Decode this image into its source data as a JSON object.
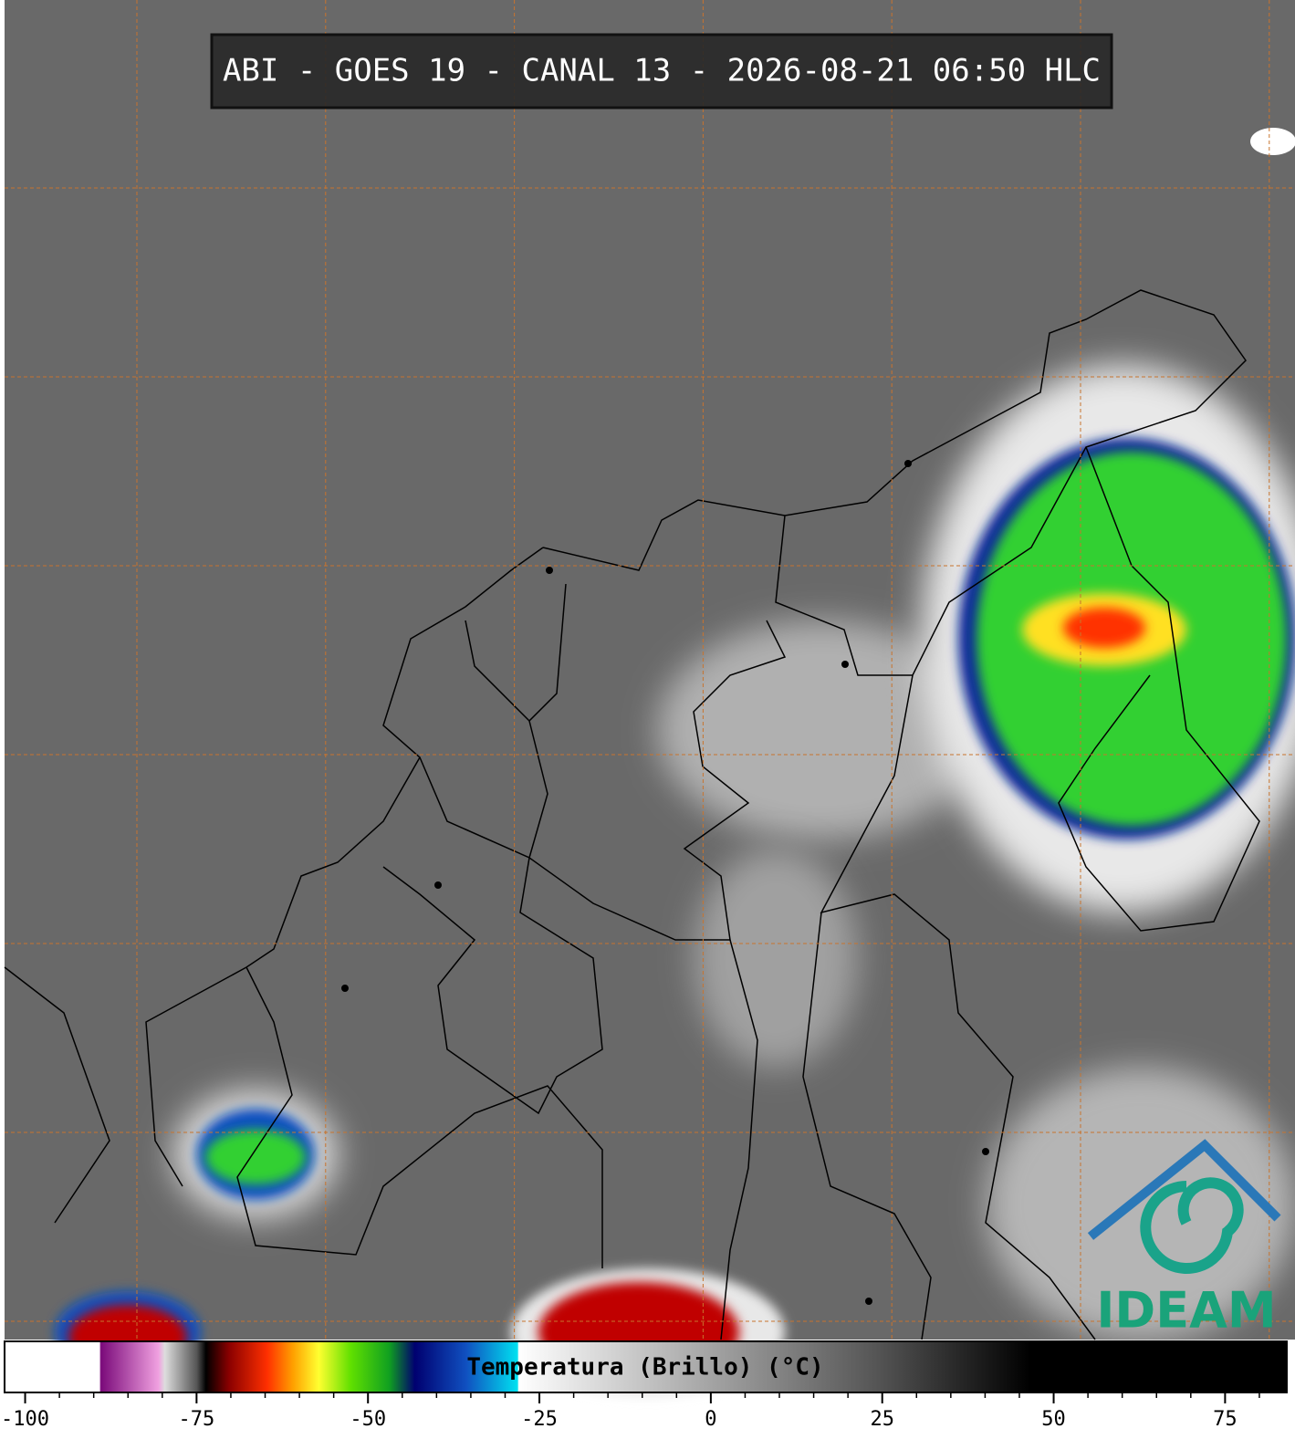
{
  "title": "ABI - GOES 19 - CANAL 13 - 2026-08-21 06:50 HLC",
  "colorbar": {
    "label": "Temperatura (Brillo) (°C)",
    "lim": [
      -103,
      84
    ],
    "ticks": [
      -100,
      -75,
      -50,
      -25,
      0,
      25,
      50,
      75
    ]
  },
  "logo": "IDEAM"
}
